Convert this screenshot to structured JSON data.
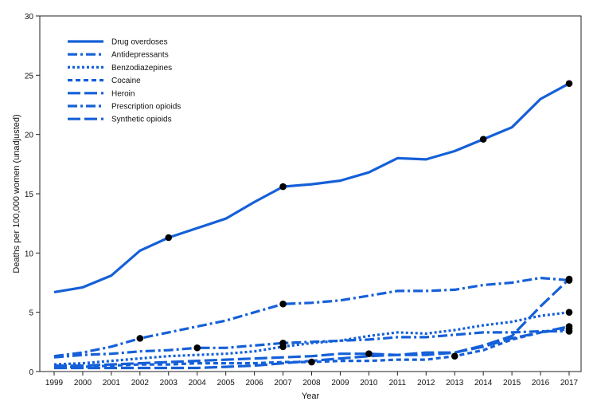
{
  "chart_data": {
    "type": "line",
    "title": "",
    "xlabel": "Year",
    "ylabel": "Deaths per 100,000 women (unadjusted)",
    "ylim": [
      0,
      30
    ],
    "yticks": [
      0,
      5,
      10,
      15,
      20,
      25,
      30
    ],
    "x": [
      "1999",
      "2000",
      "2001",
      "2002",
      "2003",
      "2004",
      "2005",
      "2006",
      "2007",
      "2008",
      "2009",
      "2010",
      "2011",
      "2012",
      "2013",
      "2014",
      "2015",
      "2016",
      "2017"
    ],
    "line_color": "#1560d8",
    "marker_color": "#000000",
    "legend_position": "top-left",
    "series": [
      {
        "name": "Drug overdoses",
        "dash": "solid",
        "values": [
          6.7,
          7.1,
          8.1,
          10.2,
          11.3,
          12.1,
          12.9,
          14.3,
          15.6,
          15.8,
          16.1,
          16.8,
          18.0,
          17.9,
          18.6,
          19.6,
          20.6,
          23.0,
          24.3
        ],
        "markers": [
          4,
          8,
          15,
          18
        ]
      },
      {
        "name": "Antidepressants",
        "dash": "dashdot",
        "values": [
          1.3,
          1.6,
          2.1,
          2.8,
          3.3,
          3.8,
          4.3,
          5.0,
          5.7,
          5.8,
          6.0,
          6.4,
          6.8,
          6.8,
          6.9,
          7.3,
          7.5,
          7.9,
          7.7
        ],
        "markers": [
          3,
          8,
          18
        ]
      },
      {
        "name": "Benzodiazepines",
        "dash": "dot",
        "values": [
          0.6,
          0.7,
          0.9,
          1.1,
          1.3,
          1.4,
          1.5,
          1.7,
          2.1,
          2.4,
          2.6,
          3.0,
          3.3,
          3.2,
          3.5,
          3.9,
          4.2,
          4.7,
          5.0
        ],
        "markers": [
          8,
          18
        ]
      },
      {
        "name": "Cocaine",
        "dash": "shortdash",
        "values": [
          0.4,
          0.4,
          0.5,
          0.6,
          0.6,
          0.7,
          0.7,
          0.7,
          0.8,
          0.8,
          0.9,
          0.9,
          1.0,
          1.0,
          1.3,
          1.8,
          2.7,
          3.3,
          3.6
        ],
        "markers": [
          9,
          14,
          18
        ]
      },
      {
        "name": "Heroin",
        "dash": "longdash",
        "values": [
          0.3,
          0.3,
          0.3,
          0.3,
          0.3,
          0.3,
          0.4,
          0.5,
          0.7,
          0.9,
          1.1,
          1.3,
          1.4,
          1.6,
          1.6,
          2.2,
          3.0,
          5.5,
          7.8
        ],
        "markers": [
          18
        ]
      },
      {
        "name": "Prescription opioids",
        "dash": "dashdot",
        "values": [
          1.2,
          1.4,
          1.5,
          1.7,
          1.8,
          2.0,
          2.0,
          2.2,
          2.4,
          2.5,
          2.6,
          2.7,
          2.9,
          2.9,
          3.1,
          3.3,
          3.3,
          3.4,
          3.4
        ],
        "markers": [
          5,
          8,
          18
        ]
      },
      {
        "name": "Synthetic opioids",
        "dash": "longdash",
        "values": [
          0.5,
          0.5,
          0.6,
          0.7,
          0.8,
          0.9,
          1.0,
          1.1,
          1.2,
          1.3,
          1.5,
          1.5,
          1.4,
          1.4,
          1.6,
          2.1,
          2.8,
          3.3,
          3.8
        ],
        "markers": [
          11,
          18
        ]
      }
    ]
  }
}
